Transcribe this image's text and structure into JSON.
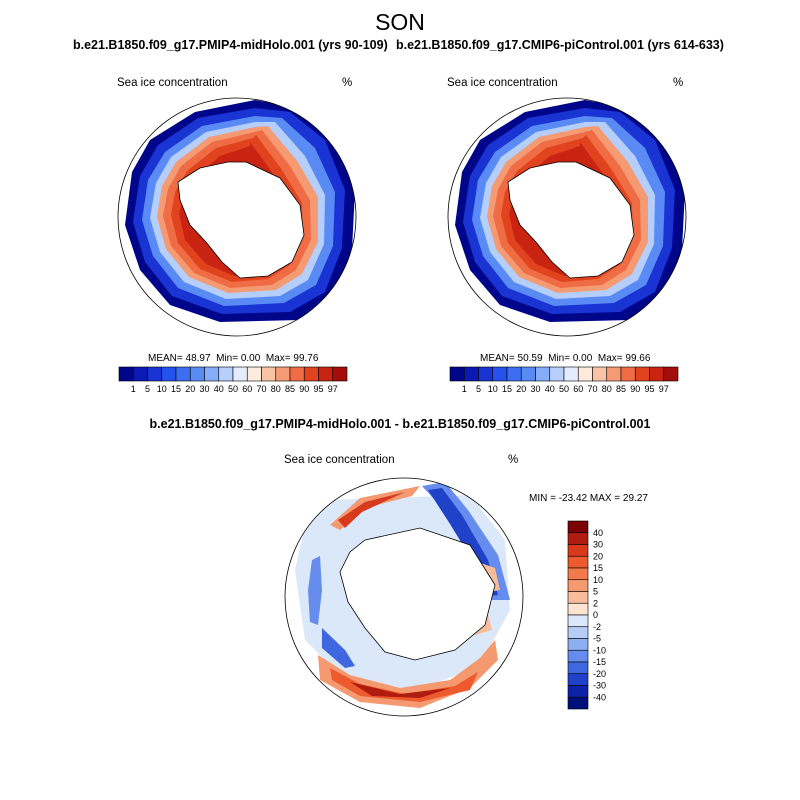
{
  "title": "SON",
  "panels": [
    {
      "id": "midholo",
      "title": "b.e21.B1850.f09_g17.PMIP4-midHolo.001 (yrs 90-109)",
      "variable": "Sea ice concentration",
      "units": "%",
      "stats": {
        "mean_label": "MEAN=",
        "mean": "48.97",
        "min_label": "Min=",
        "min": "0.00",
        "max_label": "Max=",
        "max": "99.76"
      }
    },
    {
      "id": "picontrol",
      "title": "b.e21.B1850.f09_g17.CMIP6-piControl.001 (yrs 614-633)",
      "variable": "Sea ice concentration",
      "units": "%",
      "stats": {
        "mean_label": "MEAN=",
        "mean": "50.59",
        "min_label": "Min=",
        "min": "0.00",
        "max_label": "Max=",
        "max": "99.66"
      }
    }
  ],
  "difference": {
    "title": "b.e21.B1850.f09_g17.PMIP4-midHolo.001 - b.e21.B1850.f09_g17.CMIP6-piControl.001",
    "variable": "Sea ice concentration",
    "units": "%",
    "minmax": "MIN = -23.42 MAX =  29.27"
  },
  "chart_data": [
    {
      "type": "heatmap",
      "subtype": "polar-stereographic-map",
      "title": "b.e21.B1850.f09_g17.PMIP4-midHolo.001 (yrs 90-109)",
      "variable": "Sea ice concentration",
      "units": "%",
      "mean": 48.97,
      "min": 0.0,
      "max": 99.76,
      "colorbar": {
        "orientation": "horizontal",
        "levels": [
          1,
          5,
          10,
          15,
          20,
          30,
          40,
          50,
          60,
          70,
          80,
          85,
          90,
          95,
          97
        ],
        "colors": [
          "#00068a",
          "#0b1ab2",
          "#1a34d4",
          "#2551ec",
          "#3d6ef2",
          "#5a8bf5",
          "#86aef8",
          "#b5cffa",
          "#e2ecfd",
          "#fdebdd",
          "#f9c4a6",
          "#f59b74",
          "#ef6c45",
          "#e2431f",
          "#c92312",
          "#a30e0a"
        ]
      }
    },
    {
      "type": "heatmap",
      "subtype": "polar-stereographic-map",
      "title": "b.e21.B1850.f09_g17.CMIP6-piControl.001 (yrs 614-633)",
      "variable": "Sea ice concentration",
      "units": "%",
      "mean": 50.59,
      "min": 0.0,
      "max": 99.66,
      "colorbar": {
        "orientation": "horizontal",
        "levels": [
          1,
          5,
          10,
          15,
          20,
          30,
          40,
          50,
          60,
          70,
          80,
          85,
          90,
          95,
          97
        ],
        "colors": [
          "#00068a",
          "#0b1ab2",
          "#1a34d4",
          "#2551ec",
          "#3d6ef2",
          "#5a8bf5",
          "#86aef8",
          "#b5cffa",
          "#e2ecfd",
          "#fdebdd",
          "#f9c4a6",
          "#f59b74",
          "#ef6c45",
          "#e2431f",
          "#c92312",
          "#a30e0a"
        ]
      }
    },
    {
      "type": "heatmap",
      "subtype": "polar-stereographic-map",
      "title": "b.e21.B1850.f09_g17.PMIP4-midHolo.001 - b.e21.B1850.f09_g17.CMIP6-piControl.001",
      "variable": "Sea ice concentration",
      "units": "%",
      "min": -23.42,
      "max": 29.27,
      "colorbar": {
        "orientation": "vertical",
        "levels": [
          40,
          30,
          20,
          15,
          10,
          5,
          2,
          0,
          -2,
          -5,
          -10,
          -15,
          -20,
          -30,
          -40
        ],
        "colors": [
          "#7a0403",
          "#b01c0f",
          "#d8391c",
          "#ec5a2e",
          "#f2794a",
          "#f59a70",
          "#f8bc9c",
          "#fde3d1",
          "#dbe8fa",
          "#b7cdf6",
          "#8eaef2",
          "#668ced",
          "#3f68e0",
          "#1f42c8",
          "#0d22a8",
          "#00107a"
        ]
      }
    }
  ]
}
